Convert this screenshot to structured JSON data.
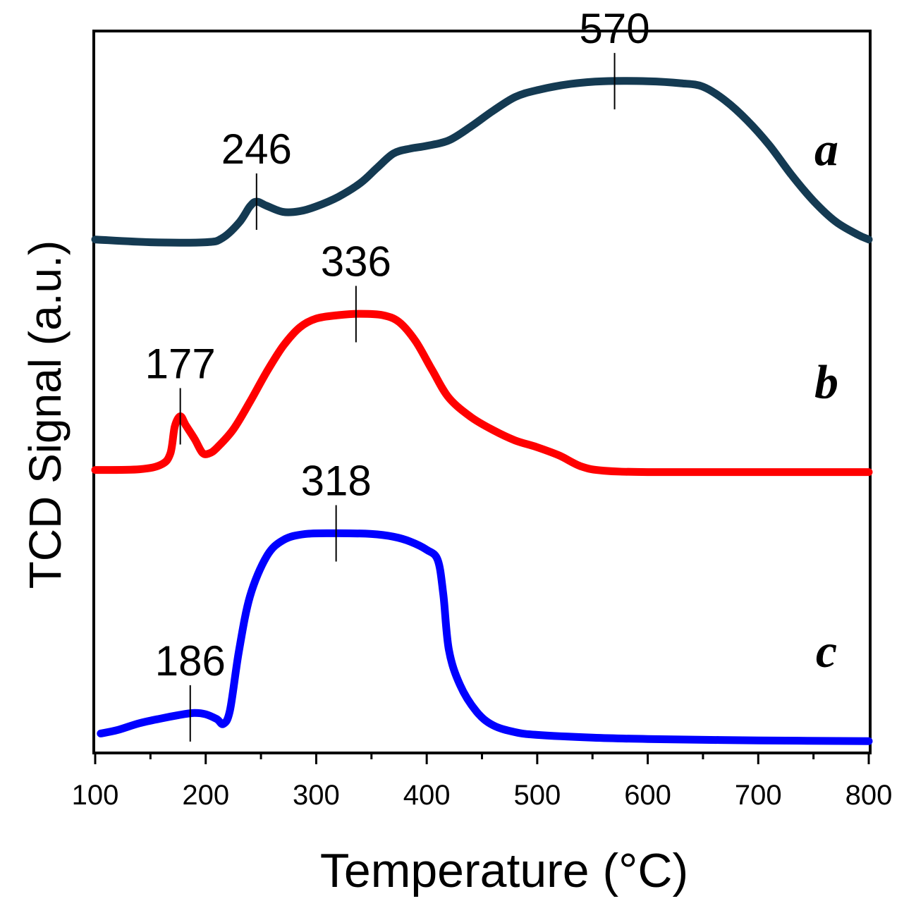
{
  "chart_data": {
    "type": "line",
    "xlabel": "Temperature (°C)",
    "ylabel": "TCD Signal (a.u.)",
    "xlim": [
      100,
      800
    ],
    "ylim": [
      0,
      100
    ],
    "x_ticks": [
      100,
      200,
      300,
      400,
      500,
      600,
      700,
      800
    ],
    "x_tick_labels": [
      "100",
      "200",
      "300",
      "400",
      "500",
      "600",
      "700",
      "800"
    ],
    "grid": false,
    "series": [
      {
        "name": "a",
        "color": "#143a52",
        "points": [
          [
            100,
            73.6
          ],
          [
            150,
            73.2
          ],
          [
            200,
            73.2
          ],
          [
            215,
            73.8
          ],
          [
            230,
            76.0
          ],
          [
            240,
            78.4
          ],
          [
            246,
            79.1
          ],
          [
            255,
            78.5
          ],
          [
            270,
            77.6
          ],
          [
            285,
            77.7
          ],
          [
            300,
            78.4
          ],
          [
            320,
            79.8
          ],
          [
            340,
            81.8
          ],
          [
            355,
            84.0
          ],
          [
            370,
            86.1
          ],
          [
            385,
            86.8
          ],
          [
            400,
            87.2
          ],
          [
            420,
            88.0
          ],
          [
            440,
            90.0
          ],
          [
            460,
            92.3
          ],
          [
            480,
            94.3
          ],
          [
            500,
            95.3
          ],
          [
            530,
            96.2
          ],
          [
            560,
            96.6
          ],
          [
            600,
            96.6
          ],
          [
            630,
            96.3
          ],
          [
            650,
            95.8
          ],
          [
            670,
            93.8
          ],
          [
            690,
            90.9
          ],
          [
            710,
            87.3
          ],
          [
            730,
            83.0
          ],
          [
            750,
            79.2
          ],
          [
            770,
            76.2
          ],
          [
            790,
            74.3
          ],
          [
            800,
            73.6
          ]
        ],
        "peaks": [
          {
            "x": 246,
            "label": "246"
          },
          {
            "x": 570,
            "label": "570"
          }
        ]
      },
      {
        "name": "b",
        "color": "#ff0000",
        "points": [
          [
            100,
            40.1
          ],
          [
            140,
            40.2
          ],
          [
            160,
            40.9
          ],
          [
            168,
            42.5
          ],
          [
            172,
            46.4
          ],
          [
            177,
            47.9
          ],
          [
            182,
            46.6
          ],
          [
            190,
            44.6
          ],
          [
            197,
            42.6
          ],
          [
            203,
            42.5
          ],
          [
            210,
            43.3
          ],
          [
            225,
            46.0
          ],
          [
            240,
            50.0
          ],
          [
            255,
            54.3
          ],
          [
            270,
            58.1
          ],
          [
            285,
            60.8
          ],
          [
            300,
            62.1
          ],
          [
            320,
            62.6
          ],
          [
            340,
            62.8
          ],
          [
            360,
            62.6
          ],
          [
            375,
            61.6
          ],
          [
            390,
            58.8
          ],
          [
            405,
            54.6
          ],
          [
            420,
            50.6
          ],
          [
            440,
            47.8
          ],
          [
            460,
            45.9
          ],
          [
            480,
            44.4
          ],
          [
            500,
            43.4
          ],
          [
            520,
            42.2
          ],
          [
            540,
            40.6
          ],
          [
            560,
            40.0
          ],
          [
            600,
            39.8
          ],
          [
            700,
            39.8
          ],
          [
            800,
            39.8
          ]
        ],
        "peaks": [
          {
            "x": 177,
            "label": "177"
          },
          {
            "x": 336,
            "label": "336"
          }
        ]
      },
      {
        "name": "c",
        "color": "#0000ff",
        "points": [
          [
            105,
            1.8
          ],
          [
            120,
            2.3
          ],
          [
            140,
            3.3
          ],
          [
            160,
            4.0
          ],
          [
            180,
            4.6
          ],
          [
            190,
            4.8
          ],
          [
            200,
            4.6
          ],
          [
            210,
            3.9
          ],
          [
            216,
            3.2
          ],
          [
            222,
            5.2
          ],
          [
            230,
            13.7
          ],
          [
            240,
            21.7
          ],
          [
            255,
            27.5
          ],
          [
            270,
            29.9
          ],
          [
            290,
            30.8
          ],
          [
            320,
            30.9
          ],
          [
            350,
            30.8
          ],
          [
            370,
            30.4
          ],
          [
            385,
            29.7
          ],
          [
            400,
            28.5
          ],
          [
            410,
            27.0
          ],
          [
            415,
            22.0
          ],
          [
            420,
            14.0
          ],
          [
            430,
            8.9
          ],
          [
            445,
            5.0
          ],
          [
            460,
            3.0
          ],
          [
            480,
            2.0
          ],
          [
            500,
            1.6
          ],
          [
            550,
            1.2
          ],
          [
            600,
            1.0
          ],
          [
            700,
            0.8
          ],
          [
            800,
            0.7
          ]
        ],
        "peaks": [
          {
            "x": 186,
            "label": "186"
          },
          {
            "x": 318,
            "label": "318"
          }
        ]
      }
    ]
  }
}
